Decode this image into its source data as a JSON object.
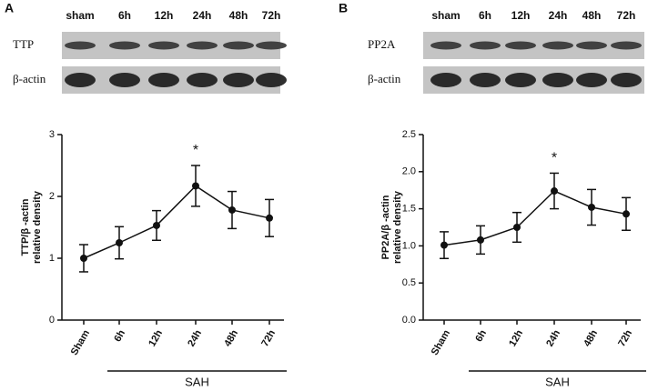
{
  "chart_data": [
    {
      "type": "line",
      "panel_label": "A",
      "blot": {
        "lanes": [
          "sham",
          "6h",
          "12h",
          "24h",
          "48h",
          "72h"
        ],
        "rows": [
          "TTP",
          "β-actin"
        ]
      },
      "y_label": [
        "TTP/β -actin",
        "relative density"
      ],
      "categories": [
        "Sham",
        "6h",
        "12h",
        "24h",
        "48h",
        "72h"
      ],
      "values": [
        1.0,
        1.25,
        1.53,
        2.17,
        1.78,
        1.65
      ],
      "errors": [
        0.22,
        0.26,
        0.24,
        0.33,
        0.3,
        0.3
      ],
      "color": "#111111",
      "ylim": [
        0,
        3
      ],
      "yticks": [
        0,
        1,
        2,
        3
      ],
      "annotations": [
        {
          "x": "24h",
          "text": "*"
        }
      ],
      "group_label": "SAH"
    },
    {
      "type": "line",
      "panel_label": "B",
      "blot": {
        "lanes": [
          "sham",
          "6h",
          "12h",
          "24h",
          "48h",
          "72h"
        ],
        "rows": [
          "PP2A",
          "β-actin"
        ]
      },
      "y_label": [
        "PP2A/β -actin",
        "relative density"
      ],
      "categories": [
        "Sham",
        "6h",
        "12h",
        "24h",
        "48h",
        "72h"
      ],
      "values": [
        1.01,
        1.08,
        1.25,
        1.74,
        1.52,
        1.43
      ],
      "errors": [
        0.18,
        0.19,
        0.2,
        0.24,
        0.24,
        0.22
      ],
      "color": "#111111",
      "ylim": [
        0,
        2.5
      ],
      "yticks": [
        {
          "value": 0,
          "label": "0.0"
        },
        0.5,
        {
          "value": 1,
          "label": "1.0"
        },
        1.5,
        {
          "value": 2,
          "label": "2.0"
        },
        2.5
      ],
      "annotations": [
        {
          "x": "24h",
          "text": "*"
        }
      ],
      "group_label": "SAH"
    }
  ]
}
